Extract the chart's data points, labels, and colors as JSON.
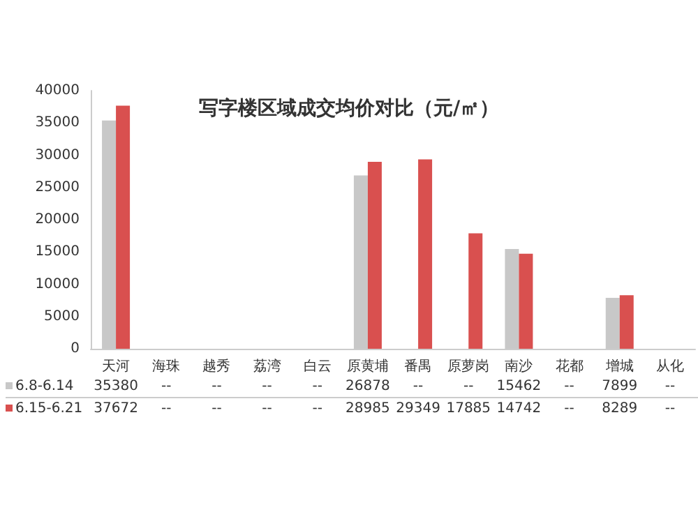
{
  "chart_data": {
    "type": "bar",
    "title": "写字楼区域成交均价对比（元/㎡）",
    "categories": [
      "天河",
      "海珠",
      "越秀",
      "荔湾",
      "白云",
      "原黄埔",
      "番禺",
      "原萝岗",
      "南沙",
      "花都",
      "增城",
      "从化"
    ],
    "series": [
      {
        "name": "6.8-6.14",
        "color": "#c8c8c8",
        "values": [
          35380,
          null,
          null,
          null,
          null,
          26878,
          null,
          null,
          15462,
          null,
          7899,
          null
        ],
        "value_labels": [
          "35380",
          "--",
          "--",
          "--",
          "--",
          "26878",
          "--",
          "--",
          "15462",
          "--",
          "7899",
          "--"
        ]
      },
      {
        "name": "6.15-6.21",
        "color": "#d9504f",
        "values": [
          37672,
          null,
          null,
          null,
          null,
          28985,
          29349,
          17885,
          14742,
          null,
          8289,
          null
        ],
        "value_labels": [
          "37672",
          "--",
          "--",
          "--",
          "--",
          "28985",
          "29349",
          "17885",
          "14742",
          "--",
          "8289",
          "--"
        ]
      }
    ],
    "ylim": [
      0,
      40000
    ],
    "yticks": [
      0,
      5000,
      10000,
      15000,
      20000,
      25000,
      30000,
      35000,
      40000
    ],
    "grid": false,
    "legend": "bottom left"
  }
}
